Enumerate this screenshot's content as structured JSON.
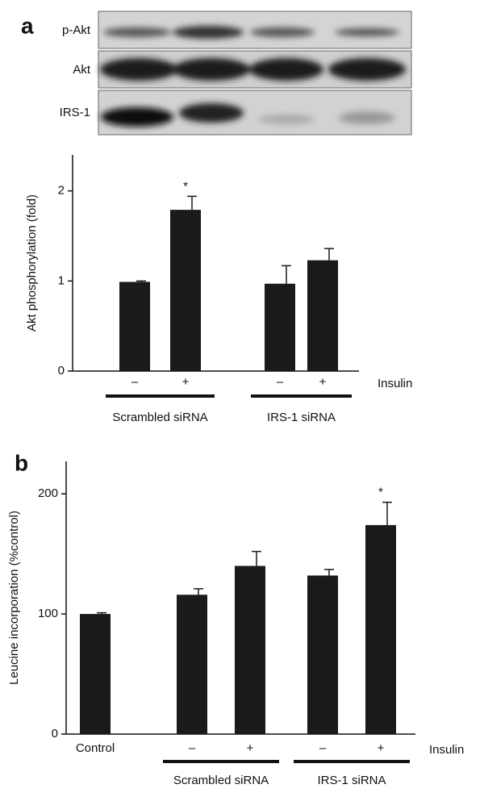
{
  "blot": {
    "panel_label": "a",
    "labels": [
      "p-Akt",
      "Akt",
      "IRS-1"
    ]
  },
  "chart_data": [
    {
      "type": "bar",
      "ylabel": "Akt phosphorylation  (fold)",
      "xlabel": "Insulin",
      "categories": [
        "–",
        "+",
        "–",
        "+"
      ],
      "groups": [
        "Scrambled siRNA",
        "IRS-1 siRNA"
      ],
      "values": [
        0.99,
        1.79,
        0.97,
        1.23
      ],
      "errors": [
        0.01,
        0.15,
        0.2,
        0.13
      ],
      "annotations": [
        null,
        "*",
        null,
        null
      ],
      "color": "#1a1a1a",
      "ylim": [
        0,
        2.4
      ],
      "yticks": [
        0,
        1,
        2
      ]
    },
    {
      "type": "bar",
      "panel_label": "b",
      "ylabel": "Leucine incorporation (%control)",
      "xlabel": "Insulin",
      "categories": [
        "Control",
        "–",
        "+",
        "–",
        "+"
      ],
      "groups": [
        "Scrambled siRNA",
        "IRS-1 siRNA"
      ],
      "values": [
        100,
        116,
        140,
        132,
        174
      ],
      "errors": [
        1,
        5,
        12,
        5,
        19
      ],
      "annotations": [
        null,
        null,
        null,
        null,
        "*"
      ],
      "color": "#1a1a1a",
      "ylim": [
        0,
        227
      ],
      "yticks": [
        0,
        100,
        200
      ]
    }
  ]
}
